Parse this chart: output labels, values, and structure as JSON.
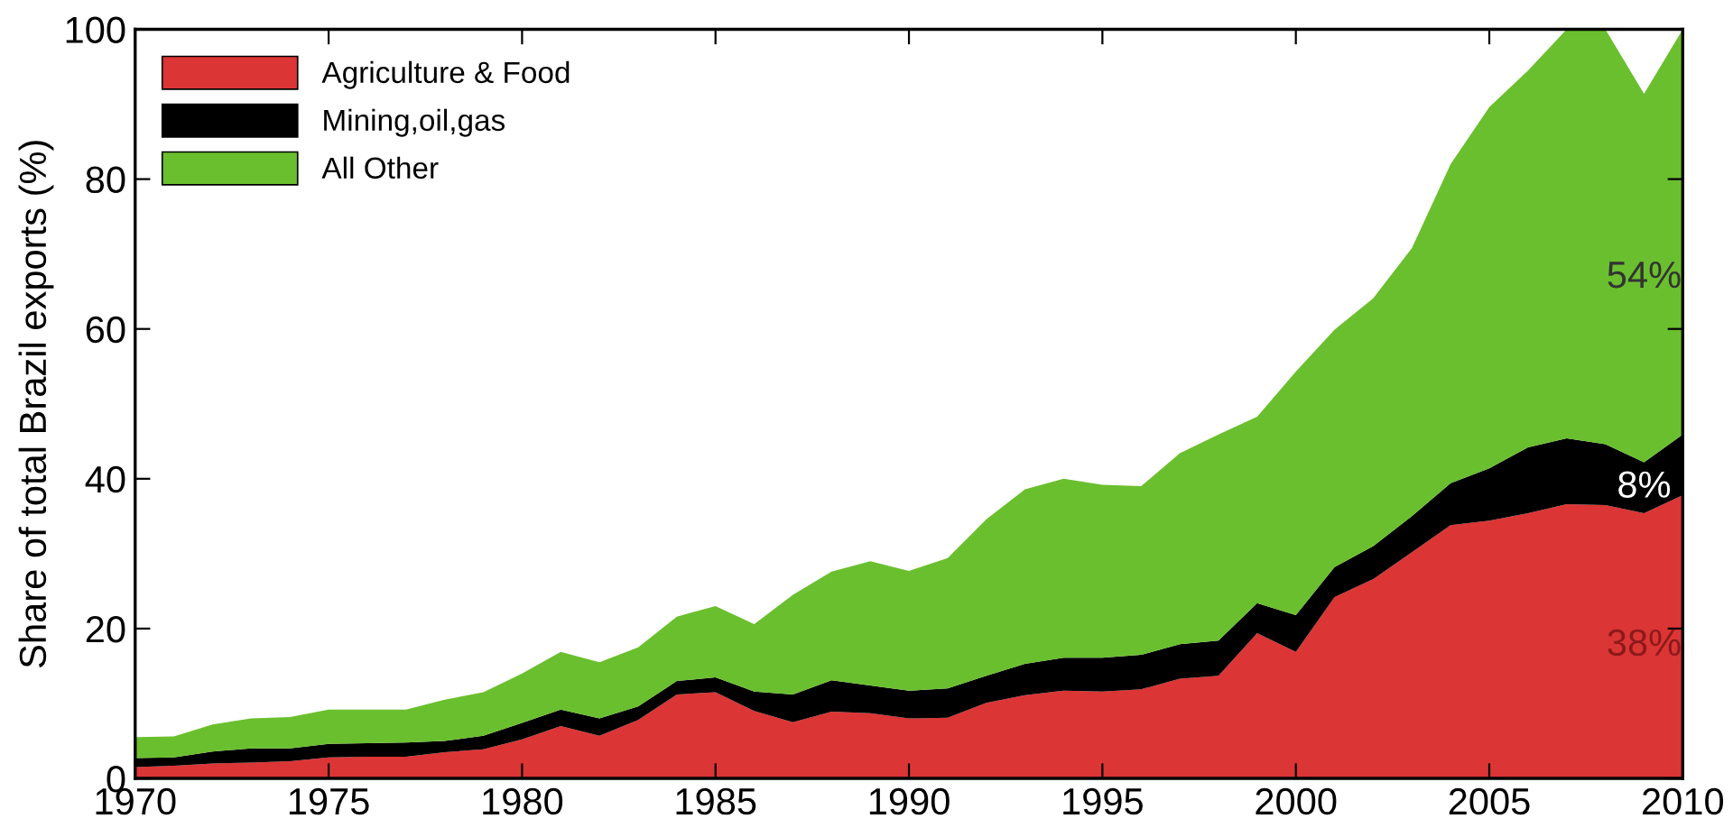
{
  "chart_data": {
    "type": "area",
    "stacked": true,
    "ylabel": "Share of total Brazil exports (%)",
    "x": [
      1970,
      1971,
      1972,
      1973,
      1974,
      1975,
      1976,
      1977,
      1978,
      1979,
      1980,
      1981,
      1982,
      1983,
      1984,
      1985,
      1986,
      1987,
      1988,
      1989,
      1990,
      1991,
      1992,
      1993,
      1994,
      1995,
      1996,
      1997,
      1998,
      1999,
      2000,
      2001,
      2002,
      2003,
      2004,
      2005,
      2006,
      2007,
      2008,
      2009,
      2010
    ],
    "series": [
      {
        "name": "Agriculture & Food",
        "color": "#dc3535",
        "values": [
          1.5,
          1.7,
          2.0,
          2.1,
          2.3,
          2.8,
          2.9,
          2.9,
          3.5,
          3.9,
          5.2,
          7.0,
          5.7,
          7.8,
          11.2,
          11.5,
          9.0,
          7.5,
          8.9,
          8.7,
          8.0,
          8.1,
          10.1,
          11.1,
          11.7,
          11.6,
          11.9,
          13.3,
          13.7,
          19.4,
          16.9,
          24.2,
          26.6,
          30.2,
          33.8,
          34.4,
          35.4,
          36.6,
          36.5,
          35.4,
          37.8
        ]
      },
      {
        "name": "Mining,oil,gas",
        "color": "#000000",
        "values": [
          1.2,
          1.1,
          1.6,
          1.9,
          1.7,
          1.8,
          1.8,
          1.9,
          1.5,
          1.8,
          2.2,
          2.2,
          2.3,
          1.8,
          1.8,
          2.0,
          2.6,
          3.7,
          4.2,
          3.7,
          3.7,
          3.9,
          3.6,
          4.2,
          4.4,
          4.5,
          4.6,
          4.6,
          4.7,
          4.0,
          4.9,
          4.0,
          4.4,
          4.8,
          5.6,
          7.0,
          8.8,
          8.8,
          8.1,
          6.8,
          8.1
        ]
      },
      {
        "name": "All Other",
        "color": "#6abf2e",
        "values": [
          2.8,
          2.8,
          3.6,
          4.0,
          4.2,
          4.6,
          4.5,
          4.4,
          5.5,
          5.8,
          6.6,
          7.7,
          7.5,
          7.9,
          8.6,
          9.5,
          9.0,
          13.3,
          14.5,
          16.6,
          16.0,
          17.4,
          20.9,
          23.3,
          23.9,
          23.1,
          22.5,
          25.5,
          27.5,
          24.9,
          32.5,
          31.7,
          33.1,
          35.8,
          42.6,
          48.2,
          50.3,
          54.6,
          55.4,
          49.2,
          54.1
        ]
      }
    ],
    "annotations": [
      "54%",
      "8%",
      "38%"
    ],
    "xlim": [
      1970,
      2010
    ],
    "ylim": [
      0,
      100
    ],
    "xticks": [
      1970,
      1975,
      1980,
      1985,
      1990,
      1995,
      2000,
      2005,
      2010
    ],
    "yticks": [
      0,
      20,
      40,
      60,
      80,
      100
    ],
    "grid": false,
    "legend": "top left"
  }
}
